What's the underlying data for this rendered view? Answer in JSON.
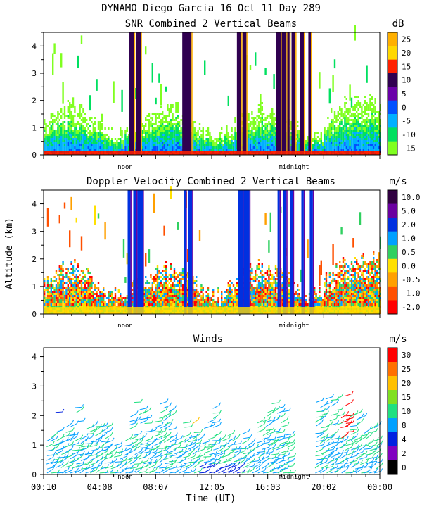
{
  "header": {
    "title": "DYNAMO Diego Garcia  16 Oct 11 Day 289"
  },
  "common": {
    "ylabel": "Altitude (km)",
    "xlabel": "Time (UT)",
    "noon_label": "noon",
    "midnight_label": "midnight",
    "xticks": [
      "00:10",
      "04:08",
      "08:07",
      "12:05",
      "16:03",
      "20:02",
      "00:00"
    ]
  },
  "chart_data": [
    {
      "type": "heatmap",
      "title": "SNR Combined 2 Vertical Beams",
      "units": "dB",
      "ylim": [
        0,
        4.5
      ],
      "yticks": [
        "0",
        "1",
        "2",
        "3",
        "4"
      ],
      "colorbar": {
        "labels": [
          "25",
          "20",
          "15",
          "10",
          "5",
          "0",
          "-5",
          "-10",
          "-15"
        ],
        "colors": [
          "#ffb000",
          "#ffd800",
          "#ff2000",
          "#300050",
          "#6a00a8",
          "#0050ff",
          "#00b0ff",
          "#00e060",
          "#80ff20"
        ]
      },
      "spikes_hours": [
        6.1,
        6.3,
        6.6,
        9.9,
        10.2,
        13.8,
        14.2,
        16.6,
        17.0,
        17.4,
        17.7,
        18.3,
        18.9
      ]
    },
    {
      "type": "heatmap",
      "title": "Doppler Velocity Combined 2 Vertical Beams",
      "units": "m/s",
      "ylim": [
        0,
        4.5
      ],
      "yticks": [
        "0",
        "1",
        "2",
        "3",
        "4"
      ],
      "colorbar": {
        "labels": [
          "10.0",
          "5.0",
          "2.0",
          "1.0",
          "0.5",
          "0.0",
          "-0.5",
          "-1.0",
          "-2.0"
        ],
        "colors": [
          "#300040",
          "#6a00a0",
          "#0030e0",
          "#00a0ff",
          "#30d060",
          "#ffe000",
          "#ffa000",
          "#ff5000",
          "#ff0000"
        ]
      },
      "spikes_hours": [
        6.0,
        6.4,
        6.7,
        10.0,
        10.3,
        13.9,
        14.3,
        16.7,
        17.1,
        17.6,
        18.4,
        19.0
      ]
    },
    {
      "type": "scatter",
      "title": "Winds",
      "units": "m/s",
      "ylim": [
        0,
        4.3
      ],
      "yticks": [
        "0",
        "1",
        "2",
        "3",
        "4"
      ],
      "colorbar": {
        "labels": [
          "30",
          "25",
          "20",
          "15",
          "10",
          "8",
          "4",
          "2",
          "0"
        ],
        "colors": [
          "#ff0000",
          "#ff7000",
          "#ffc000",
          "#80e020",
          "#20e080",
          "#00a0ff",
          "#0020e0",
          "#8000c0",
          "#000000"
        ]
      },
      "gap_hours": [
        [
          17.4,
          19.2
        ]
      ]
    }
  ]
}
